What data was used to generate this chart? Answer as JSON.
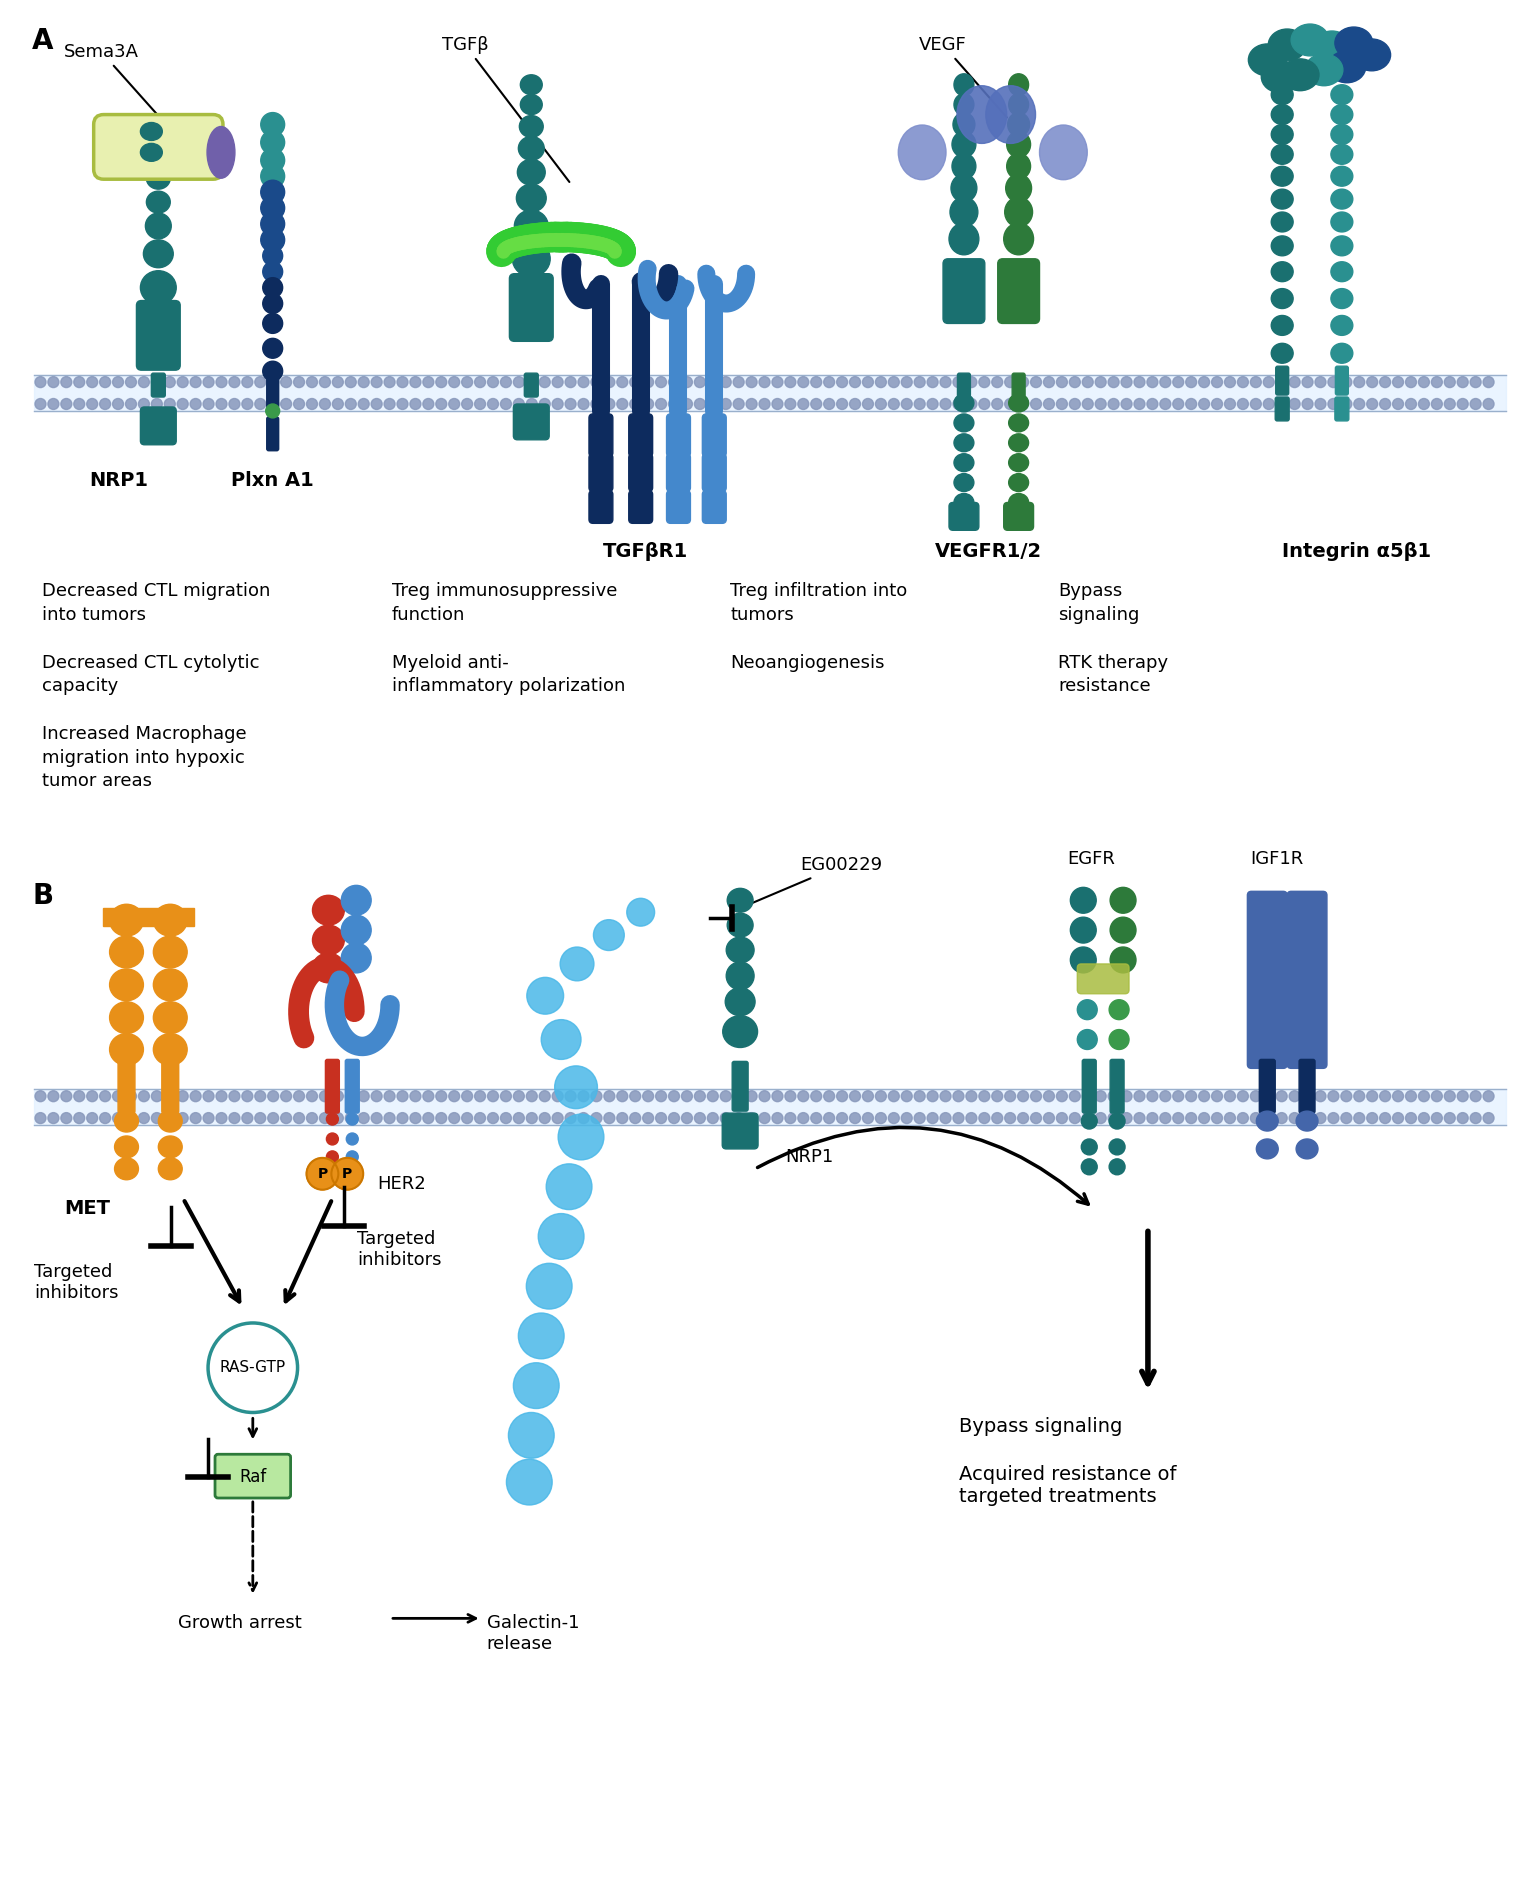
{
  "fig_width": 15.35,
  "fig_height": 19.03,
  "bg_color": "#ffffff",
  "teal_dark": "#1a7070",
  "teal_mid": "#2a9090",
  "teal_light": "#40b0a0",
  "green_dark": "#2d7a3a",
  "green_mid": "#3a9a4a",
  "green_light": "#4cc44c",
  "green_bright": "#33cc33",
  "blue_dark": "#0d2b5e",
  "blue_mid": "#1a4a8a",
  "blue_light": "#5580c0",
  "blue_bright": "#4488cc",
  "purple": "#7060aa",
  "yellow_green_light": "#e8f0b0",
  "yellow_green": "#a8bc40",
  "olive": "#8ca020",
  "orange": "#e89018",
  "red": "#c83020",
  "cyan": "#4ab8e8",
  "cyan_light": "#7acce8",
  "blue_slate": "#4466aa",
  "panel_A_col1": [
    "Decreased CTL migration\ninto tumors",
    "Decreased CTL cytolytic\ncapacity",
    "Increased Macrophage\nmigration into hypoxic\ntumor areas"
  ],
  "panel_A_col2": [
    "Treg immunosuppressive\nfunction",
    "Myeloid anti-\ninflammatory polarization"
  ],
  "panel_A_col3": [
    "Treg infiltration into\ntumors",
    "Neoangiogenesis"
  ],
  "panel_A_col4": [
    "Bypass\nsignaling",
    "RTK therapy\nresistance"
  ]
}
